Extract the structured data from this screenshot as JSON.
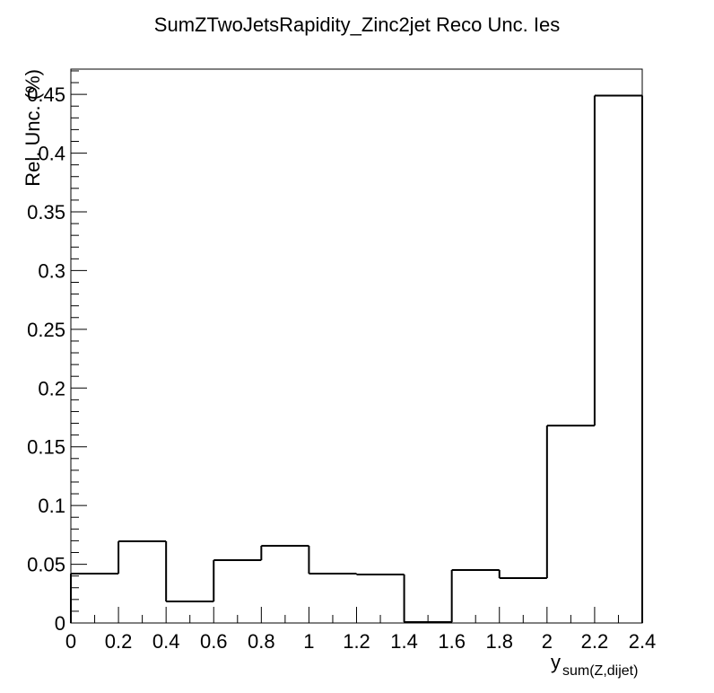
{
  "chart_data": {
    "type": "histogram",
    "title": "SumZTwoJetsRapidity_Zinc2jet Reco Unc. Ies",
    "xlabel": "y",
    "xlabel_subscript": "sum(Z,dijet)",
    "ylabel": "Rel. Unc. (%)",
    "bins": [
      0,
      0.2,
      0.4,
      0.6,
      0.8,
      1,
      1.2,
      1.4,
      1.6,
      1.8,
      2,
      2.2,
      2.4
    ],
    "values": [
      0.042,
      0.0695,
      0.0183,
      0.0535,
      0.0657,
      0.042,
      0.0413,
      0.0008,
      0.0451,
      0.0382,
      0.168,
      0.449
    ],
    "color": "#000000",
    "xlim": [
      0,
      2.4
    ],
    "xticks": [
      0,
      0.2,
      0.4,
      0.6,
      0.8,
      1,
      1.2,
      1.4,
      1.6,
      1.8,
      2,
      2.2,
      2.4
    ],
    "ylim": [
      0,
      0.4715
    ],
    "yticks": [
      0,
      0.05,
      0.1,
      0.15,
      0.2,
      0.25,
      0.3,
      0.35,
      0.4,
      0.45
    ]
  }
}
